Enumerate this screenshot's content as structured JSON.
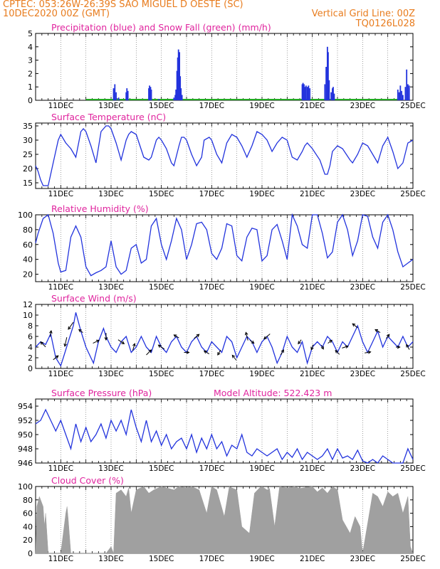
{
  "header": {
    "station_line": "CPTEC:  053:26W-26:39S  SAO MIGUEL D OESTE (SC)",
    "date_line": "10DEC2020 00Z (GMT)",
    "grid_note": "Vertical Grid Line: 00Z",
    "code": "TQ0126L028"
  },
  "colors": {
    "header": "#e87c1e",
    "title": "#e0249e",
    "line": "#2233dd",
    "precip": "#2233dd",
    "snow": "#22aa22",
    "cloud": "#a0a0a0",
    "grid": "#777777"
  },
  "x_axis": {
    "labels": [
      "11DEC",
      "13DEC",
      "15DEC",
      "17DEC",
      "19DEC",
      "21DEC",
      "23DEC",
      "25DEC"
    ],
    "start_day": 10,
    "end_day": 25
  },
  "chart_data": [
    {
      "id": "precip",
      "type": "bar",
      "title": "Precipitation (blue) and Snow Fall (green) (mm/h)",
      "ylim": [
        0,
        5
      ],
      "yticks": [
        0,
        1,
        2,
        3,
        4,
        5
      ],
      "series": [
        {
          "name": "Precipitation",
          "points": [
            [
              13.1,
              0.9
            ],
            [
              13.15,
              1.2
            ],
            [
              13.2,
              0.6
            ],
            [
              13.3,
              0.2
            ],
            [
              13.6,
              0.6
            ],
            [
              13.63,
              0.9
            ],
            [
              13.67,
              0.7
            ],
            [
              14.5,
              0.9
            ],
            [
              14.53,
              1.1
            ],
            [
              14.57,
              1.0
            ],
            [
              14.6,
              0.8
            ],
            [
              14.9,
              0.1
            ],
            [
              15.5,
              0.2
            ],
            [
              15.55,
              0.4
            ],
            [
              15.58,
              0.8
            ],
            [
              15.62,
              2.2
            ],
            [
              15.65,
              3.2
            ],
            [
              15.68,
              3.8
            ],
            [
              15.72,
              3.6
            ],
            [
              15.75,
              1.8
            ],
            [
              15.78,
              0.9
            ],
            [
              15.82,
              0.4
            ],
            [
              20.6,
              1.2
            ],
            [
              20.63,
              1.3
            ],
            [
              20.67,
              1.2
            ],
            [
              20.7,
              1.0
            ],
            [
              20.75,
              1.1
            ],
            [
              20.8,
              1.0
            ],
            [
              20.85,
              1.1
            ],
            [
              20.9,
              0.9
            ],
            [
              21.5,
              1.2
            ],
            [
              21.55,
              2.5
            ],
            [
              21.6,
              4.0
            ],
            [
              21.63,
              3.6
            ],
            [
              21.67,
              1.5
            ],
            [
              21.75,
              0.6
            ],
            [
              21.8,
              0.9
            ],
            [
              21.83,
              1.0
            ],
            [
              21.87,
              0.5
            ],
            [
              24.4,
              0.8
            ],
            [
              24.45,
              0.6
            ],
            [
              24.5,
              1.1
            ],
            [
              24.55,
              0.7
            ],
            [
              24.6,
              0.4
            ],
            [
              24.7,
              1.0
            ],
            [
              24.75,
              2.3
            ],
            [
              24.8,
              1.2
            ],
            [
              24.85,
              1.1
            ]
          ]
        },
        {
          "name": "Snow Fall",
          "range": [
            12.0,
            24.6
          ]
        }
      ]
    },
    {
      "id": "temp",
      "type": "line",
      "title": "Surface Temperature (nC)",
      "ylim": [
        13,
        36
      ],
      "yticks": [
        15,
        20,
        25,
        30,
        35
      ],
      "x": [
        10.0,
        10.1,
        10.2,
        10.3,
        10.5,
        10.7,
        10.9,
        11.0,
        11.2,
        11.4,
        11.6,
        11.8,
        11.9,
        12.0,
        12.2,
        12.4,
        12.6,
        12.8,
        12.9,
        13.0,
        13.2,
        13.4,
        13.6,
        13.7,
        13.8,
        14.0,
        14.3,
        14.5,
        14.6,
        14.8,
        14.9,
        15.0,
        15.2,
        15.4,
        15.5,
        15.7,
        15.8,
        15.9,
        16.0,
        16.2,
        16.4,
        16.6,
        16.7,
        16.9,
        17.0,
        17.2,
        17.4,
        17.6,
        17.8,
        18.0,
        18.2,
        18.4,
        18.6,
        18.8,
        19.0,
        19.2,
        19.4,
        19.6,
        19.8,
        20.0,
        20.2,
        20.4,
        20.6,
        20.7,
        20.8,
        21.0,
        21.3,
        21.5,
        21.6,
        21.7,
        21.8,
        22.0,
        22.2,
        22.5,
        22.6,
        22.8,
        23.0,
        23.2,
        23.4,
        23.6,
        23.8,
        24.0,
        24.2,
        24.4,
        24.6,
        24.8,
        25.0
      ],
      "y": [
        21,
        19,
        16,
        14,
        14,
        22,
        30,
        32,
        29,
        27,
        24,
        33,
        34,
        33,
        28,
        22,
        33,
        35,
        35,
        34,
        29,
        23,
        30,
        32,
        33,
        32,
        24,
        23,
        24,
        30,
        31,
        30,
        27,
        22,
        21,
        28,
        31,
        31,
        30,
        25,
        21,
        24,
        30,
        31,
        30,
        25,
        22,
        29,
        32,
        31,
        28,
        24,
        28,
        33,
        32,
        30,
        26,
        29,
        31,
        30,
        24,
        23,
        26,
        28,
        29,
        27,
        23,
        18,
        18,
        21,
        26,
        28,
        27,
        23,
        22,
        25,
        29,
        28,
        25,
        22,
        28,
        31,
        26,
        20,
        22,
        29,
        30
      ]
    },
    {
      "id": "rh",
      "type": "line",
      "title": "Relative Humidity (%)",
      "ylim": [
        10,
        100
      ],
      "yticks": [
        20,
        40,
        60,
        80,
        100
      ],
      "x": [
        10.0,
        10.1,
        10.3,
        10.5,
        10.7,
        10.9,
        11.0,
        11.2,
        11.4,
        11.6,
        11.8,
        12.0,
        12.2,
        12.4,
        12.6,
        12.8,
        13.0,
        13.2,
        13.4,
        13.6,
        13.8,
        14.0,
        14.2,
        14.4,
        14.6,
        14.8,
        15.0,
        15.2,
        15.4,
        15.6,
        15.8,
        16.0,
        16.2,
        16.4,
        16.6,
        16.8,
        17.0,
        17.2,
        17.4,
        17.6,
        17.8,
        18.0,
        18.2,
        18.4,
        18.6,
        18.8,
        19.0,
        19.2,
        19.4,
        19.6,
        19.8,
        20.0,
        20.2,
        20.4,
        20.6,
        20.8,
        21.0,
        21.2,
        21.4,
        21.6,
        21.8,
        22.0,
        22.2,
        22.4,
        22.6,
        22.8,
        23.0,
        23.2,
        23.4,
        23.6,
        23.8,
        24.0,
        24.2,
        24.4,
        24.6,
        24.8,
        25.0
      ],
      "y": [
        62,
        75,
        95,
        100,
        75,
        35,
        23,
        25,
        70,
        85,
        70,
        30,
        18,
        22,
        25,
        30,
        65,
        30,
        20,
        25,
        55,
        60,
        35,
        40,
        85,
        95,
        60,
        40,
        65,
        95,
        80,
        40,
        60,
        88,
        90,
        80,
        48,
        40,
        55,
        88,
        85,
        45,
        38,
        70,
        82,
        80,
        38,
        45,
        80,
        87,
        65,
        40,
        100,
        85,
        60,
        55,
        100,
        100,
        75,
        42,
        50,
        90,
        100,
        80,
        45,
        65,
        100,
        98,
        70,
        55,
        90,
        100,
        80,
        50,
        30,
        35,
        40
      ]
    },
    {
      "id": "wind",
      "type": "line",
      "title": "Surface Wind (m/s)",
      "ylim": [
        0,
        12
      ],
      "yticks": [
        0,
        2,
        4,
        6,
        8,
        10,
        12
      ],
      "x": [
        10.0,
        10.2,
        10.4,
        10.6,
        10.8,
        11.0,
        11.1,
        11.3,
        11.5,
        11.6,
        11.8,
        12.0,
        12.2,
        12.3,
        12.5,
        12.7,
        12.8,
        13.0,
        13.2,
        13.4,
        13.6,
        13.8,
        14.0,
        14.2,
        14.4,
        14.6,
        14.8,
        15.0,
        15.2,
        15.4,
        15.6,
        15.8,
        16.0,
        16.2,
        16.4,
        16.6,
        16.8,
        17.0,
        17.2,
        17.4,
        17.6,
        17.8,
        18.0,
        18.2,
        18.4,
        18.6,
        18.8,
        19.0,
        19.2,
        19.4,
        19.6,
        19.8,
        20.0,
        20.2,
        20.4,
        20.6,
        20.8,
        21.0,
        21.2,
        21.4,
        21.6,
        21.8,
        22.0,
        22.2,
        22.4,
        22.6,
        22.8,
        23.0,
        23.2,
        23.4,
        23.6,
        23.8,
        24.0,
        24.2,
        24.4,
        24.6,
        24.8,
        25.0
      ],
      "y": [
        4,
        5,
        4.5,
        6.5,
        2,
        0.5,
        2,
        5,
        8,
        10.5,
        7,
        4,
        2,
        1,
        5,
        7.5,
        6,
        4,
        3,
        5,
        6,
        3,
        4,
        6,
        4,
        3,
        6,
        4,
        3,
        5,
        6,
        4,
        3,
        5,
        6,
        4,
        3,
        5,
        4,
        3,
        6,
        5,
        2,
        4,
        6,
        5,
        3,
        5,
        6,
        4,
        1,
        3,
        6,
        4,
        3,
        5,
        1,
        4,
        5,
        4,
        6,
        5,
        3,
        5,
        4,
        6,
        8,
        5,
        3,
        5,
        7,
        4,
        6,
        5,
        4,
        6,
        4,
        5
      ]
    },
    {
      "id": "pressure",
      "type": "line",
      "title": "Surface Pressure (hPa)",
      "annotation": "Model Altitude: 522.423 m",
      "ylim": [
        946,
        955
      ],
      "yticks": [
        946,
        948,
        950,
        952,
        954
      ],
      "x": [
        10.0,
        10.2,
        10.4,
        10.6,
        10.8,
        11.0,
        11.2,
        11.4,
        11.6,
        11.8,
        12.0,
        12.2,
        12.4,
        12.6,
        12.8,
        13.0,
        13.2,
        13.4,
        13.6,
        13.8,
        14.0,
        14.2,
        14.4,
        14.6,
        14.8,
        15.0,
        15.2,
        15.4,
        15.6,
        15.8,
        16.0,
        16.2,
        16.4,
        16.6,
        16.8,
        17.0,
        17.2,
        17.4,
        17.6,
        17.8,
        18.0,
        18.2,
        18.4,
        18.6,
        18.8,
        19.0,
        19.2,
        19.4,
        19.6,
        19.8,
        20.0,
        20.2,
        20.4,
        20.6,
        20.8,
        21.0,
        21.2,
        21.4,
        21.6,
        21.8,
        22.0,
        22.2,
        22.4,
        22.6,
        22.8,
        23.0,
        23.2,
        23.4,
        23.6,
        23.8,
        24.0,
        24.2,
        24.4,
        24.6,
        24.8,
        25.0
      ],
      "y": [
        951.5,
        952,
        953.5,
        952,
        950.5,
        952,
        950,
        948,
        951.5,
        949,
        951,
        949,
        950,
        951.5,
        949.5,
        952,
        950.5,
        952,
        950,
        953.5,
        951,
        949,
        952,
        949,
        950.5,
        948.5,
        950,
        948,
        949,
        949.5,
        948,
        950,
        947.5,
        949.5,
        948,
        950,
        948,
        949,
        947,
        948.5,
        948,
        950,
        947.5,
        947,
        948,
        947.5,
        947,
        947.5,
        948,
        946.5,
        947.5,
        946.8,
        948,
        946.5,
        947.5,
        947,
        946.5,
        947,
        948,
        946.5,
        948,
        946.7,
        947,
        946.5,
        947.8,
        946.3,
        946,
        946.5,
        946,
        947,
        946.5,
        946,
        945.8,
        946,
        948,
        946.5
      ]
    },
    {
      "id": "cloud",
      "type": "area",
      "title": "Cloud Cover (%)",
      "ylim": [
        0,
        100
      ],
      "yticks": [
        0,
        20,
        40,
        60,
        80,
        100
      ],
      "x": [
        10.0,
        10.05,
        10.15,
        10.3,
        10.35,
        10.4,
        10.5,
        10.6,
        10.7,
        11.0,
        11.2,
        11.25,
        11.3,
        11.4,
        11.5,
        11.7,
        12.0,
        12.5,
        12.8,
        12.9,
        13.0,
        13.1,
        13.2,
        13.4,
        13.6,
        13.7,
        13.8,
        14.0,
        14.3,
        14.5,
        14.7,
        15.0,
        15.3,
        15.5,
        15.7,
        16.0,
        16.2,
        16.5,
        16.8,
        17.0,
        17.2,
        17.5,
        17.7,
        17.8,
        18.0,
        18.2,
        18.5,
        18.7,
        18.9,
        19.0,
        19.2,
        19.3,
        19.5,
        19.7,
        20.0,
        20.3,
        20.5,
        20.8,
        21.0,
        21.2,
        21.4,
        21.6,
        21.8,
        22.0,
        22.2,
        22.5,
        22.7,
        22.9,
        23.0,
        23.2,
        23.4,
        23.6,
        23.8,
        24.0,
        24.2,
        24.4,
        24.6,
        24.8,
        24.9,
        25.0
      ],
      "y": [
        0,
        70,
        85,
        70,
        40,
        60,
        0,
        0,
        0,
        0,
        60,
        70,
        50,
        0,
        0,
        0,
        0,
        0,
        0,
        5,
        10,
        0,
        90,
        95,
        85,
        98,
        60,
        95,
        100,
        90,
        95,
        100,
        97,
        95,
        100,
        98,
        100,
        95,
        60,
        100,
        95,
        55,
        100,
        98,
        95,
        40,
        30,
        90,
        98,
        100,
        95,
        97,
        40,
        100,
        98,
        100,
        97,
        99,
        100,
        92,
        98,
        90,
        100,
        95,
        50,
        30,
        55,
        40,
        0,
        45,
        90,
        85,
        70,
        92,
        85,
        90,
        60,
        85,
        10,
        0
      ]
    }
  ],
  "wind_barbs": [
    [
      10.3,
      -0.5,
      0.5
    ],
    [
      10.6,
      0.1,
      0.6
    ],
    [
      10.8,
      0.5,
      0.4
    ],
    [
      11.2,
      -0.2,
      -0.9
    ],
    [
      11.4,
      -0.5,
      -0.7
    ],
    [
      11.8,
      -0.4,
      0.3
    ],
    [
      12.4,
      0.6,
      0.3
    ],
    [
      12.8,
      0.0,
      -0.7
    ],
    [
      13.4,
      0.6,
      -0.4
    ],
    [
      13.9,
      0.2,
      0.7
    ],
    [
      14.5,
      0.5,
      0.5
    ],
    [
      15.0,
      -0.6,
      0.4
    ],
    [
      15.6,
      -0.5,
      0.3
    ],
    [
      16.0,
      0.5,
      0.0
    ],
    [
      16.4,
      0.5,
      0.4
    ],
    [
      16.8,
      -0.5,
      0.3
    ],
    [
      17.3,
      -0.3,
      -0.5
    ],
    [
      17.9,
      -0.4,
      0.5
    ],
    [
      18.4,
      -0.2,
      0.8
    ],
    [
      18.6,
      0.4,
      -0.3
    ],
    [
      19.2,
      -0.6,
      -0.5
    ],
    [
      19.8,
      0.3,
      0.5
    ],
    [
      20.5,
      -0.3,
      -0.4
    ],
    [
      21.0,
      -0.2,
      -0.5
    ],
    [
      21.4,
      0.2,
      -0.4
    ],
    [
      21.7,
      0.4,
      0.3
    ],
    [
      22.0,
      -0.4,
      0.4
    ],
    [
      22.3,
      0.6,
      0.2
    ],
    [
      22.7,
      -0.5,
      0.4
    ],
    [
      23.2,
      0.6,
      0.1
    ],
    [
      23.6,
      -0.5,
      0.3
    ],
    [
      24.0,
      0.3,
      0.4
    ],
    [
      24.4,
      0.4,
      0.0
    ],
    [
      24.8,
      -0.3,
      0.5
    ]
  ]
}
